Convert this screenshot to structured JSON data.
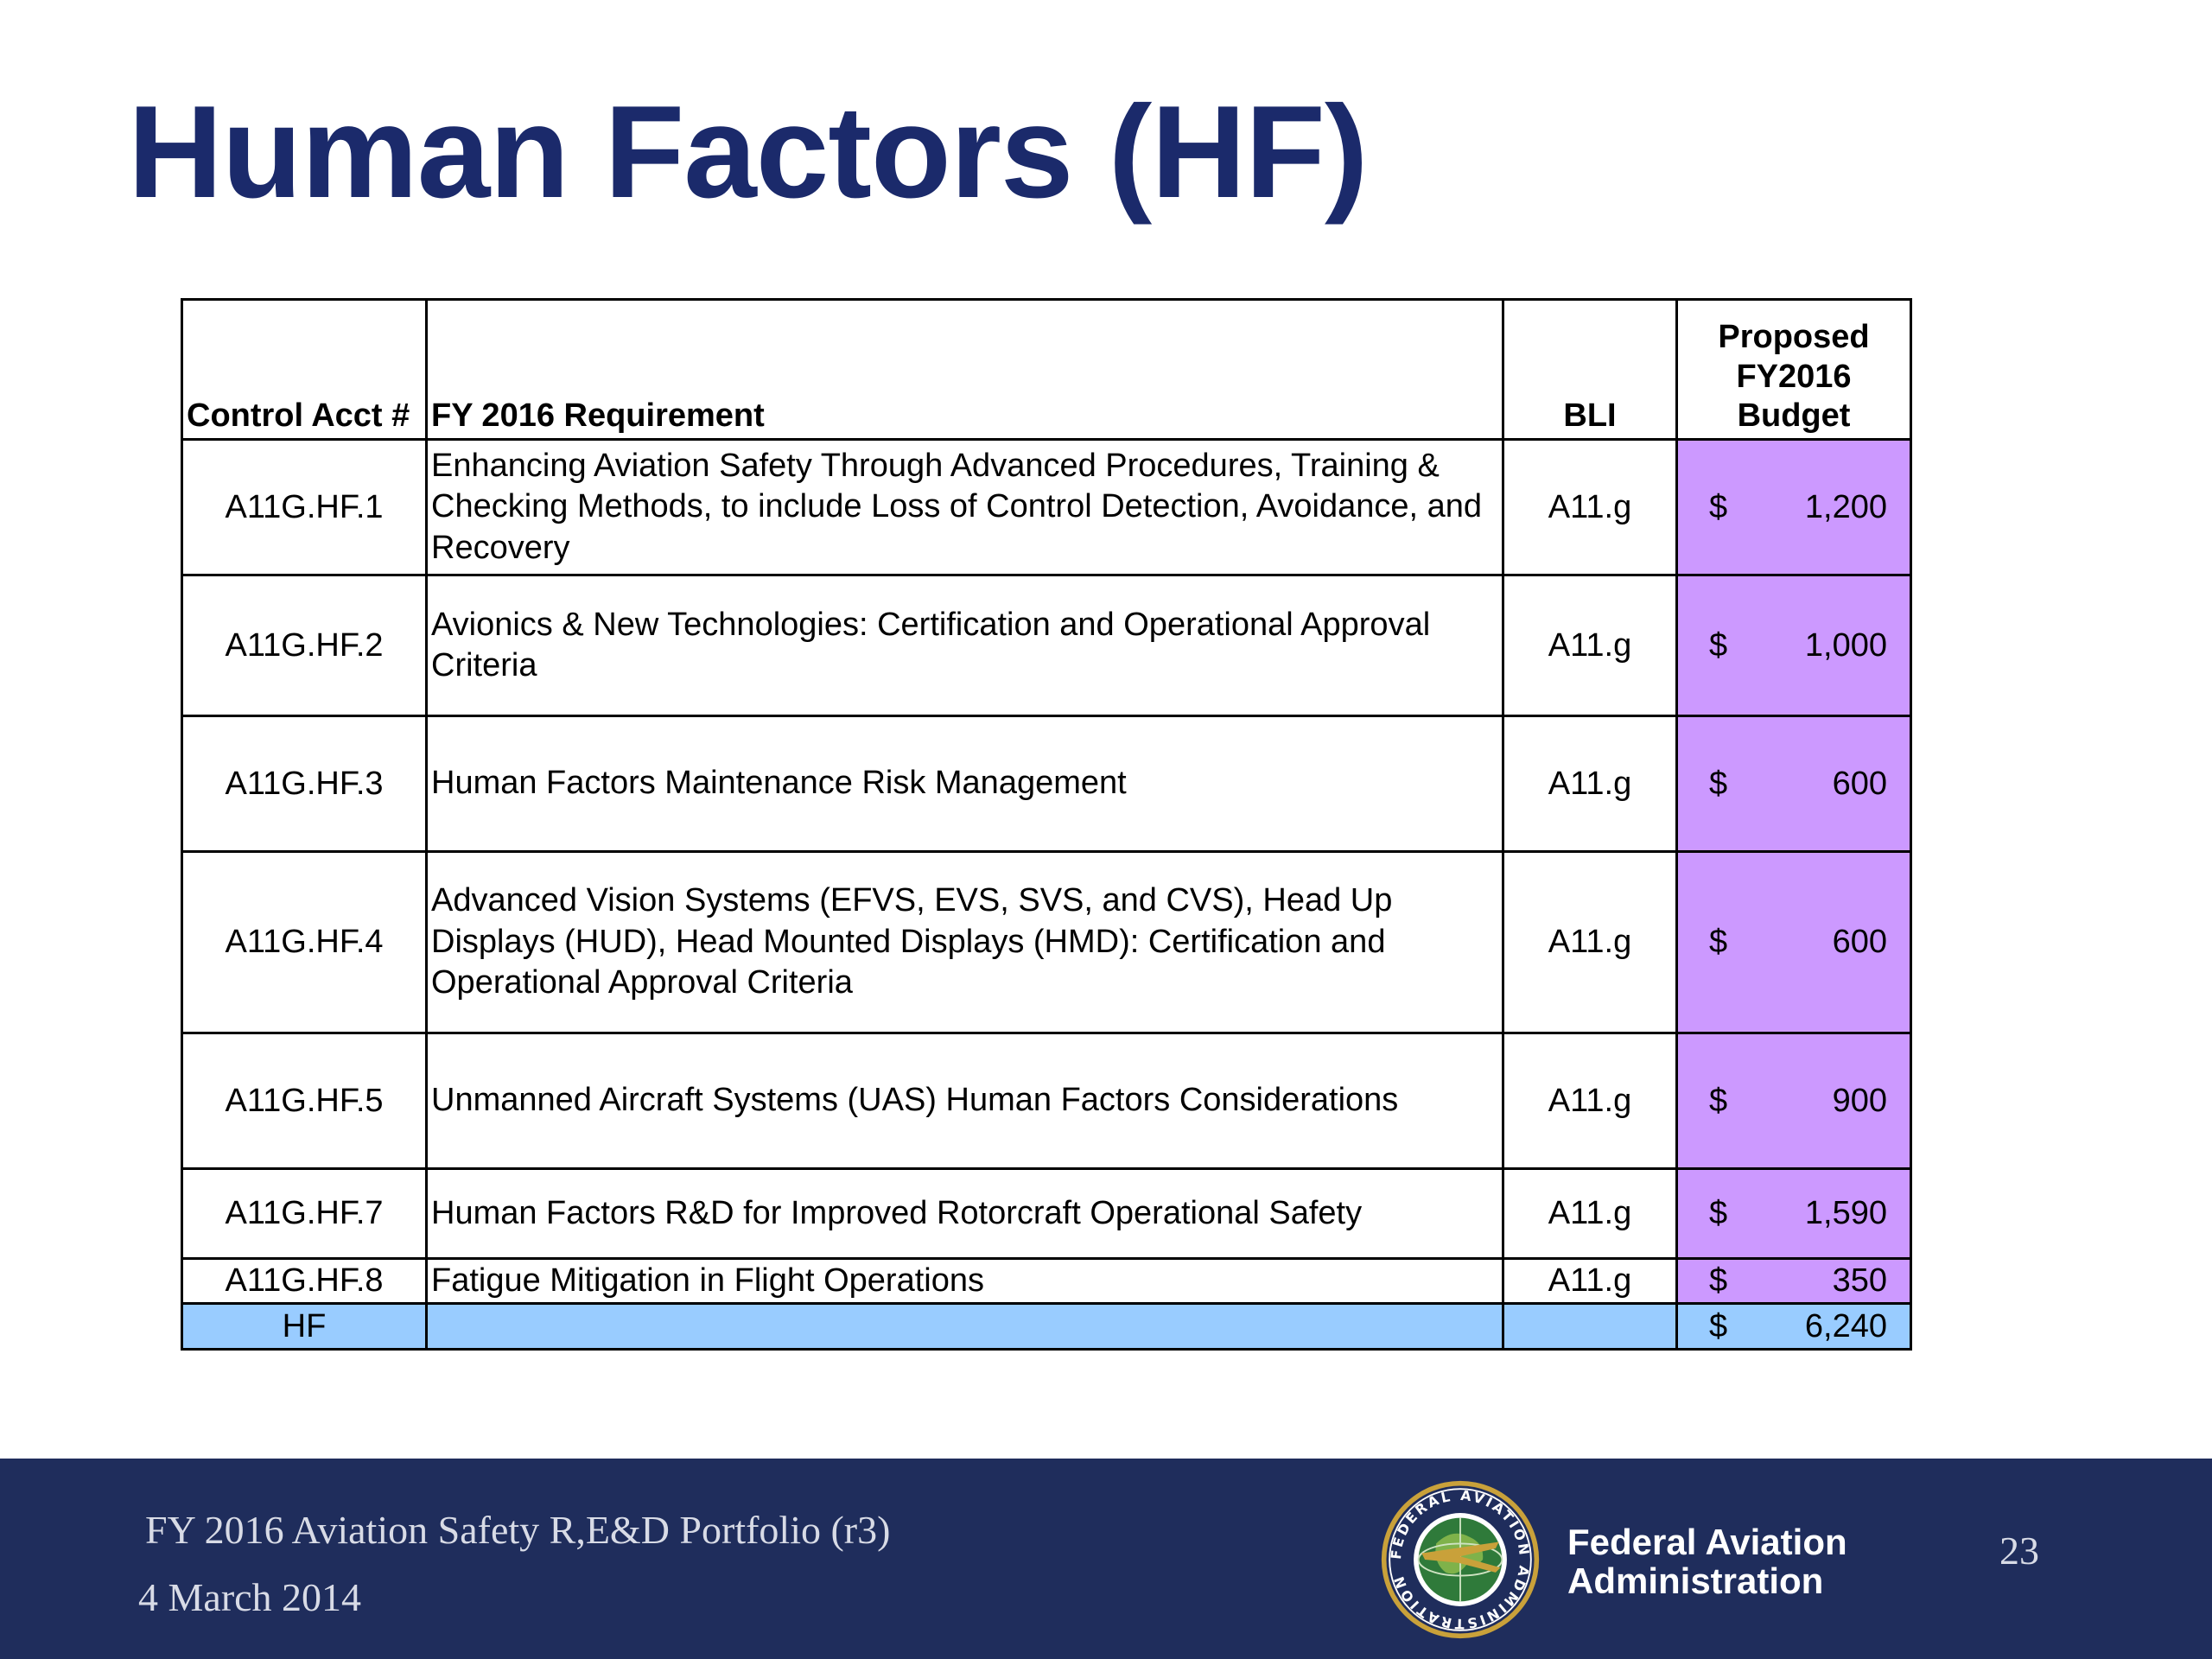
{
  "slide": {
    "title": "Human Factors (HF)"
  },
  "table": {
    "headers": {
      "control_acct": "Control Acct #",
      "requirement": "FY 2016 Requirement",
      "bli": "BLI",
      "budget_line1": "Proposed",
      "budget_line2": "FY2016",
      "budget_line3": "Budget"
    },
    "rows": [
      {
        "acct": "A11G.HF.1",
        "req": "Enhancing Aviation Safety Through Advanced Procedures, Training & Checking Methods, to include Loss of Control Detection, Avoidance, and Recovery",
        "bli": "A11.g",
        "cur": "$",
        "amount": "1,200"
      },
      {
        "acct": "A11G.HF.2",
        "req": "Avionics & New Technologies: Certification and Operational Approval Criteria",
        "bli": "A11.g",
        "cur": "$",
        "amount": "1,000"
      },
      {
        "acct": "A11G.HF.3",
        "req": "Human Factors Maintenance Risk Management",
        "bli": "A11.g",
        "cur": "$",
        "amount": "600"
      },
      {
        "acct": "A11G.HF.4",
        "req": "Advanced Vision Systems (EFVS, EVS, SVS, and CVS), Head Up Displays (HUD), Head Mounted Displays (HMD): Certification and Operational Approval Criteria",
        "bli": "A11.g",
        "cur": "$",
        "amount": "600"
      },
      {
        "acct": "A11G.HF.5",
        "req": "Unmanned Aircraft Systems (UAS) Human Factors Considerations",
        "bli": "A11.g",
        "cur": "$",
        "amount": "900"
      },
      {
        "acct": "A11G.HF.7",
        "req": "Human Factors R&D for Improved Rotorcraft Operational Safety",
        "bli": "A11.g",
        "cur": "$",
        "amount": "1,590"
      },
      {
        "acct": "A11G.HF.8",
        "req": "Fatigue Mitigation in Flight Operations",
        "bli": "A11.g",
        "cur": "$",
        "amount": "350"
      }
    ],
    "total": {
      "acct": "HF",
      "cur": "$",
      "amount": "6,240"
    },
    "colors": {
      "budget_fill": "#cc99ff",
      "total_fill": "#99ccff"
    }
  },
  "footer": {
    "portfolio": "FY 2016 Aviation Safety R,E&D Portfolio (r3)",
    "date": "4 March 2014",
    "agency_line1": "Federal Aviation",
    "agency_line2": "Administration",
    "page_number": "23",
    "seal_text": "FEDERAL AVIATION ADMINISTRATION",
    "background": "#1f2d5c"
  }
}
